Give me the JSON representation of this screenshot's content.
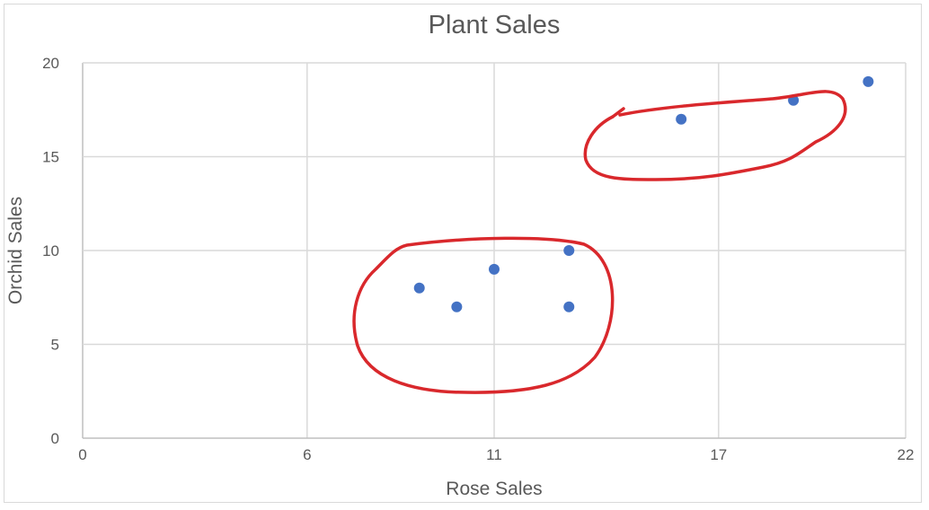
{
  "chart_data": {
    "type": "scatter",
    "title": "Plant Sales",
    "xlabel": "Rose Sales",
    "ylabel": "Orchid Sales",
    "xlim": [
      0,
      22
    ],
    "ylim": [
      0,
      20
    ],
    "x_ticks": [
      0,
      6,
      11,
      17,
      22
    ],
    "y_ticks": [
      0,
      5,
      10,
      15,
      20
    ],
    "grid": true,
    "legend": "none",
    "series": [
      {
        "color": "#4472c4",
        "points": [
          {
            "x": 9,
            "y": 8
          },
          {
            "x": 10,
            "y": 7
          },
          {
            "x": 11,
            "y": 9
          },
          {
            "x": 13,
            "y": 10
          },
          {
            "x": 13,
            "y": 7
          },
          {
            "x": 16,
            "y": 17
          },
          {
            "x": 19,
            "y": 18
          },
          {
            "x": 21,
            "y": 19
          }
        ]
      }
    ],
    "annotations": [
      {
        "type": "hand-drawn-circle",
        "color": "#d9282c",
        "encloses": "lower cluster"
      },
      {
        "type": "hand-drawn-circle",
        "color": "#d9282c",
        "encloses": "upper cluster"
      }
    ]
  }
}
